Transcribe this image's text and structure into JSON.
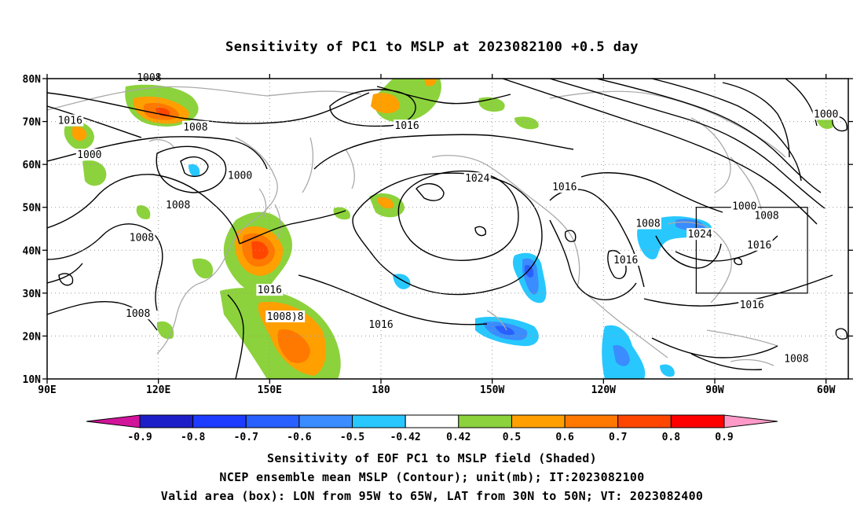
{
  "title": "Sensitivity of PC1 to MSLP at 2023082100 +0.5 day",
  "lat_labels": [
    "80N",
    "70N",
    "60N",
    "50N",
    "40N",
    "30N",
    "20N",
    "10N"
  ],
  "lon_labels": [
    "90E",
    "120E",
    "150E",
    "180",
    "150W",
    "120W",
    "90W",
    "60W"
  ],
  "contour_labels": [
    {
      "text": "1008",
      "lon": 117.5,
      "lat": 80.0
    },
    {
      "text": "1016",
      "lon": 96.2,
      "lat": 70.0
    },
    {
      "text": "1008",
      "lon": 130.0,
      "lat": 68.5
    },
    {
      "text": "1000",
      "lon": 101.4,
      "lat": 62.0
    },
    {
      "text": "1000",
      "lon": 142.0,
      "lat": 57.2
    },
    {
      "text": "1008",
      "lon": 125.3,
      "lat": 50.3
    },
    {
      "text": "1016",
      "lon": 150.0,
      "lat": 30.5
    },
    {
      "text": "1008",
      "lon": 115.5,
      "lat": 42.7
    },
    {
      "text": "1008",
      "lon": 114.5,
      "lat": 25.0
    },
    {
      "text": "1008)8",
      "lon": 154.2,
      "lat": 24.3
    },
    {
      "text": "1024",
      "lon": 206.0,
      "lat": 56.5
    },
    {
      "text": "1016",
      "lon": 187.0,
      "lat": 68.8
    },
    {
      "text": "1016",
      "lon": 229.5,
      "lat": 54.5
    },
    {
      "text": "1016",
      "lon": 180.0,
      "lat": 22.5
    },
    {
      "text": "1008",
      "lon": 252.0,
      "lat": 46.0
    },
    {
      "text": "1016",
      "lon": 246.0,
      "lat": 37.5
    },
    {
      "text": "1000",
      "lon": 300.0,
      "lat": 71.5
    },
    {
      "text": "1000",
      "lon": 278.0,
      "lat": 50.0
    },
    {
      "text": "1008",
      "lon": 284.0,
      "lat": 47.8
    },
    {
      "text": "1024",
      "lon": 266.0,
      "lat": 43.5
    },
    {
      "text": "1016",
      "lon": 282.0,
      "lat": 41.0
    },
    {
      "text": "1016",
      "lon": 280.0,
      "lat": 27.0
    },
    {
      "text": "1008",
      "lon": 292.0,
      "lat": 14.5
    }
  ],
  "colorbar": {
    "labels": [
      "-0.9",
      "-0.8",
      "-0.7",
      "-0.6",
      "-0.5",
      "-0.42",
      "0.42",
      "0.5",
      "0.6",
      "0.7",
      "0.8",
      "0.9"
    ],
    "colors": [
      "#1e1ec8",
      "#1e3cff",
      "#2860ff",
      "#3a8cff",
      "#28c8ff",
      "#ffffff",
      "#8cd23c",
      "#ffa000",
      "#ff7800",
      "#ff4600",
      "#ff0000"
    ],
    "low_extend_color": "#d2149a",
    "high_extend_color": "#ff9ac8"
  },
  "caption": [
    "Sensitivity of EOF PC1 to MSLP field (Shaded)",
    "NCEP ensemble mean MSLP (Contour); unit(mb); IT:2023082100",
    "Valid area (box): LON from 95W to 65W, LAT from 30N to 50N; VT: 2023082400"
  ],
  "valid_box": {
    "lon_min": -95,
    "lon_max": -65,
    "lat_min": 30,
    "lat_max": 50
  }
}
